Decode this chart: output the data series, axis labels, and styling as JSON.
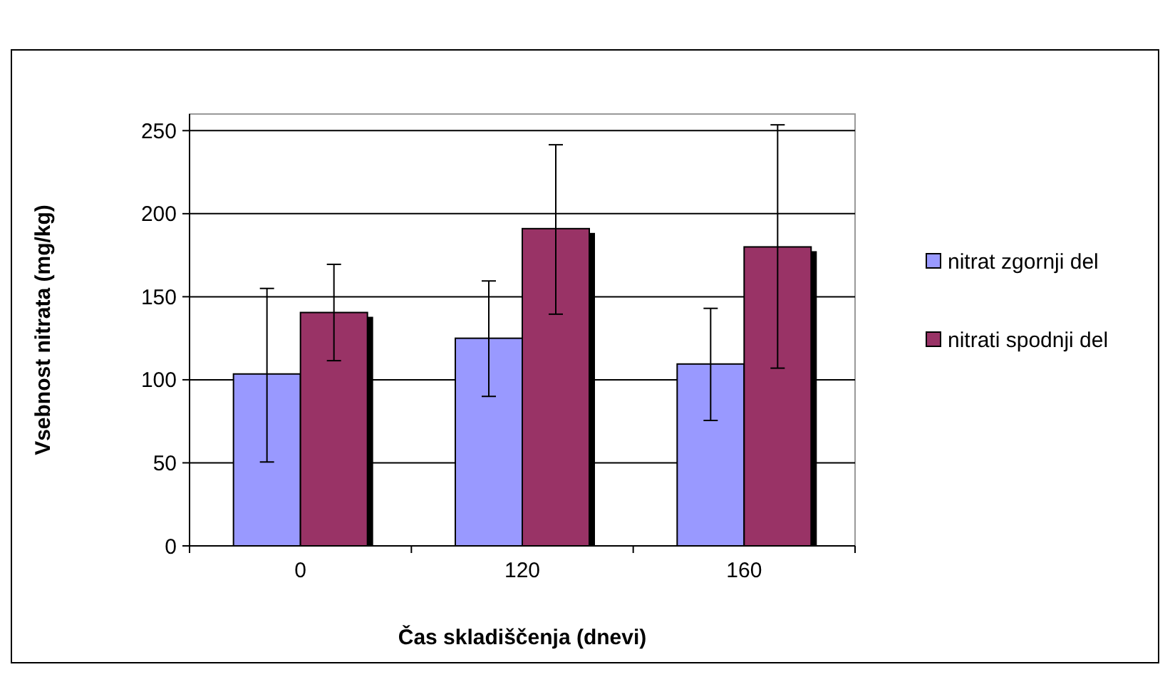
{
  "chart_data": {
    "type": "bar",
    "xlabel": "Čas skladiščenja (dnevi)",
    "ylabel": "Vsebnost nitrata (mg/kg)",
    "categories": [
      "0",
      "120",
      "160"
    ],
    "series": [
      {
        "name": "nitrat zgornji del",
        "color": "#9999ff",
        "values": [
          103.5,
          125,
          109.5
        ],
        "errors": [
          [
            50.5,
            155
          ],
          [
            90,
            159.5
          ],
          [
            75.5,
            143
          ]
        ]
      },
      {
        "name": "nitrati spodnji del",
        "color": "#993366",
        "values": [
          140.5,
          191,
          180
        ],
        "errors": [
          [
            111.5,
            169.5
          ],
          [
            139.5,
            241.5
          ],
          [
            107,
            253.5
          ]
        ]
      }
    ],
    "ylim": [
      0,
      260
    ],
    "yticks": [
      0,
      50,
      100,
      150,
      200,
      250
    ],
    "grid": "y",
    "legend": "right"
  }
}
